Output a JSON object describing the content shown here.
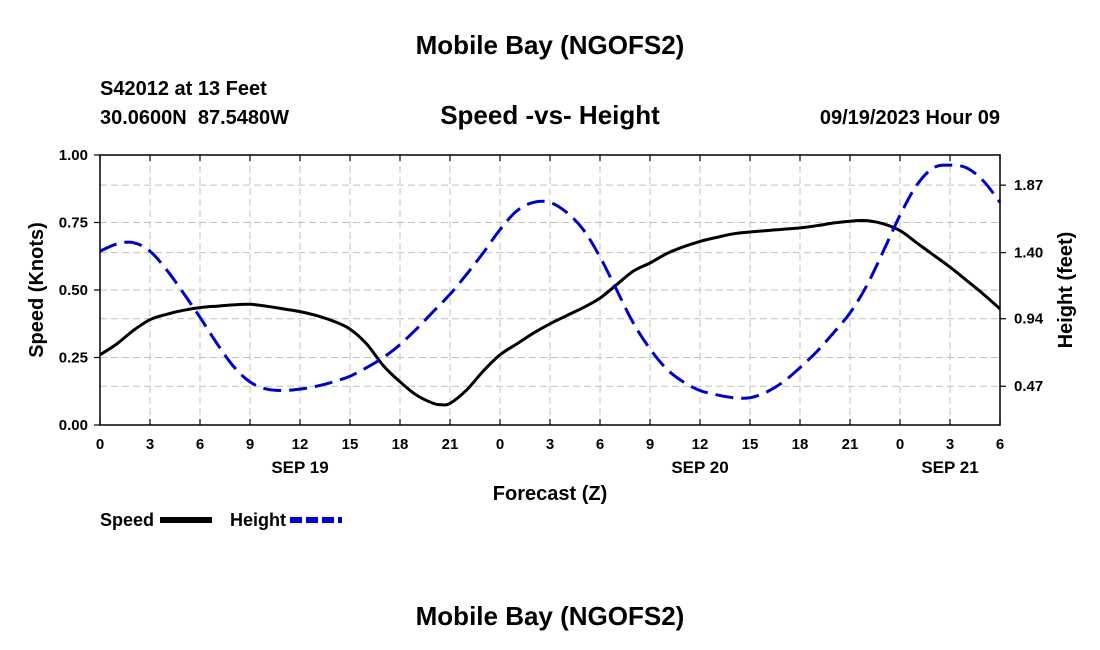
{
  "page_title": "Mobile Bay (NGOFS2)",
  "footer_title": "Mobile Bay (NGOFS2)",
  "station": {
    "name": "S42012 at 13 Feet",
    "coords": "30.0600N  87.5480W"
  },
  "timestamp": "09/19/2023 Hour 09",
  "chart_data": {
    "type": "line",
    "title": "Speed -vs- Height",
    "xlabel": "Forecast (Z)",
    "ylabel": "Speed (Knots)",
    "y2label": "Height (feet)",
    "x_unit": "hours from SEP 19 00Z",
    "xlim": [
      0,
      54
    ],
    "ylim": [
      0,
      1.0
    ],
    "y2lim": [
      0.2,
      2.08
    ],
    "x_ticks": [
      0,
      3,
      6,
      9,
      12,
      15,
      18,
      21,
      24,
      27,
      30,
      33,
      36,
      39,
      42,
      45,
      48,
      51,
      54
    ],
    "x_tick_labels": [
      "0",
      "3",
      "6",
      "9",
      "12",
      "15",
      "18",
      "21",
      "0",
      "3",
      "6",
      "9",
      "12",
      "15",
      "18",
      "21",
      "0",
      "3",
      "6"
    ],
    "date_labels": [
      {
        "x": 12,
        "label": "SEP 19"
      },
      {
        "x": 36,
        "label": "SEP 20"
      },
      {
        "x": 51,
        "label": "SEP 21"
      }
    ],
    "y_ticks": [
      0,
      0.25,
      0.5,
      0.75,
      1.0
    ],
    "y_tick_labels": [
      "0.00",
      "0.25",
      "0.50",
      "0.75",
      "1.00"
    ],
    "y2_ticks": [
      0.47,
      0.94,
      1.4,
      1.87
    ],
    "y2_tick_labels": [
      "0.47",
      "0.94",
      "1.40",
      "1.87"
    ],
    "grid": true,
    "legend_position": "bottom-left",
    "series": [
      {
        "name": "Speed",
        "axis": "left",
        "color": "#000000",
        "dash": "solid",
        "points": [
          [
            0,
            0.26
          ],
          [
            1,
            0.3
          ],
          [
            2,
            0.35
          ],
          [
            3,
            0.39
          ],
          [
            4,
            0.41
          ],
          [
            5,
            0.425
          ],
          [
            6,
            0.435
          ],
          [
            7,
            0.44
          ],
          [
            8,
            0.445
          ],
          [
            9,
            0.447
          ],
          [
            10,
            0.44
          ],
          [
            11,
            0.43
          ],
          [
            12,
            0.42
          ],
          [
            13,
            0.405
          ],
          [
            14,
            0.385
          ],
          [
            15,
            0.355
          ],
          [
            16,
            0.3
          ],
          [
            17,
            0.22
          ],
          [
            18,
            0.16
          ],
          [
            19,
            0.11
          ],
          [
            20,
            0.08
          ],
          [
            20.5,
            0.075
          ],
          [
            21,
            0.08
          ],
          [
            22,
            0.13
          ],
          [
            23,
            0.2
          ],
          [
            24,
            0.26
          ],
          [
            25,
            0.3
          ],
          [
            26,
            0.34
          ],
          [
            27,
            0.375
          ],
          [
            28,
            0.405
          ],
          [
            29,
            0.435
          ],
          [
            30,
            0.47
          ],
          [
            31,
            0.52
          ],
          [
            32,
            0.57
          ],
          [
            33,
            0.6
          ],
          [
            34,
            0.635
          ],
          [
            35,
            0.66
          ],
          [
            36,
            0.68
          ],
          [
            37,
            0.695
          ],
          [
            38,
            0.708
          ],
          [
            39,
            0.715
          ],
          [
            40,
            0.72
          ],
          [
            41,
            0.725
          ],
          [
            42,
            0.73
          ],
          [
            43,
            0.738
          ],
          [
            44,
            0.748
          ],
          [
            45,
            0.755
          ],
          [
            46,
            0.757
          ],
          [
            47,
            0.745
          ],
          [
            48,
            0.72
          ],
          [
            49,
            0.675
          ],
          [
            50,
            0.63
          ],
          [
            51,
            0.585
          ],
          [
            52,
            0.535
          ],
          [
            53,
            0.485
          ],
          [
            54,
            0.43
          ]
        ]
      },
      {
        "name": "Height",
        "axis": "right",
        "color": "#0000cc",
        "dash": "dashed",
        "points": [
          [
            0,
            1.41
          ],
          [
            1,
            1.46
          ],
          [
            2,
            1.47
          ],
          [
            3,
            1.41
          ],
          [
            4,
            1.28
          ],
          [
            5,
            1.12
          ],
          [
            6,
            0.95
          ],
          [
            7,
            0.77
          ],
          [
            8,
            0.61
          ],
          [
            9,
            0.5
          ],
          [
            10,
            0.45
          ],
          [
            11,
            0.44
          ],
          [
            12,
            0.45
          ],
          [
            13,
            0.47
          ],
          [
            14,
            0.5
          ],
          [
            15,
            0.54
          ],
          [
            16,
            0.6
          ],
          [
            17,
            0.67
          ],
          [
            18,
            0.76
          ],
          [
            19,
            0.87
          ],
          [
            20,
            0.99
          ],
          [
            21,
            1.11
          ],
          [
            22,
            1.25
          ],
          [
            23,
            1.4
          ],
          [
            24,
            1.56
          ],
          [
            25,
            1.69
          ],
          [
            26,
            1.75
          ],
          [
            27,
            1.75
          ],
          [
            28,
            1.68
          ],
          [
            29,
            1.56
          ],
          [
            30,
            1.37
          ],
          [
            31,
            1.14
          ],
          [
            32,
            0.91
          ],
          [
            33,
            0.73
          ],
          [
            34,
            0.59
          ],
          [
            35,
            0.5
          ],
          [
            36,
            0.44
          ],
          [
            37,
            0.41
          ],
          [
            38,
            0.39
          ],
          [
            39,
            0.39
          ],
          [
            40,
            0.43
          ],
          [
            41,
            0.5
          ],
          [
            42,
            0.6
          ],
          [
            43,
            0.71
          ],
          [
            44,
            0.84
          ],
          [
            45,
            0.98
          ],
          [
            46,
            1.17
          ],
          [
            47,
            1.41
          ],
          [
            48,
            1.66
          ],
          [
            49,
            1.87
          ],
          [
            50,
            1.99
          ],
          [
            51,
            2.01
          ],
          [
            52,
            1.99
          ],
          [
            53,
            1.9
          ],
          [
            54,
            1.75
          ]
        ]
      }
    ]
  },
  "legend": {
    "speed_label": "Speed",
    "height_label": "Height"
  }
}
